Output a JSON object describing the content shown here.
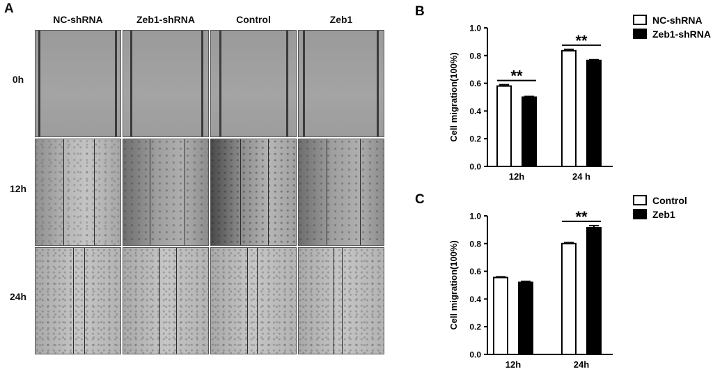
{
  "panel_a": {
    "letter": "A",
    "columns": [
      "NC-shRNA",
      "Zeb1-shRNA",
      "Control",
      "Zeb1"
    ],
    "rows": [
      "0h",
      "12h",
      "24h"
    ]
  },
  "chart_data": [
    {
      "panel": "B",
      "type": "bar",
      "categories": [
        "12h",
        "24 h"
      ],
      "series": [
        {
          "name": "NC-shRNA",
          "values": [
            0.58,
            0.835
          ],
          "errors": [
            0.01,
            0.01
          ],
          "fill": "#ffffff"
        },
        {
          "name": "Zeb1-shRNA",
          "values": [
            0.5,
            0.765
          ],
          "errors": [
            0.005,
            0.005
          ],
          "fill": "#000000"
        }
      ],
      "ylabel": "Cell migration(100%)",
      "ylim": [
        0,
        1.0
      ],
      "yticks": [
        "0.0",
        "0.2",
        "0.4",
        "0.6",
        "0.8",
        "1.0"
      ],
      "significance": [
        "**",
        "**"
      ],
      "legend": "top-right",
      "grid": false
    },
    {
      "panel": "C",
      "type": "bar",
      "categories": [
        "12h",
        "24h"
      ],
      "series": [
        {
          "name": "Control",
          "values": [
            0.555,
            0.8
          ],
          "errors": [
            0.005,
            0.007
          ],
          "fill": "#ffffff"
        },
        {
          "name": "Zeb1",
          "values": [
            0.52,
            0.915
          ],
          "errors": [
            0.007,
            0.015
          ],
          "fill": "#000000"
        }
      ],
      "ylabel": "Cell migration(100%)",
      "ylim": [
        0,
        1.0
      ],
      "yticks": [
        "0.0",
        "0.2",
        "0.4",
        "0.6",
        "0.8",
        "1.0"
      ],
      "significance": [
        "",
        "**"
      ],
      "legend": "top-right",
      "grid": false
    }
  ]
}
